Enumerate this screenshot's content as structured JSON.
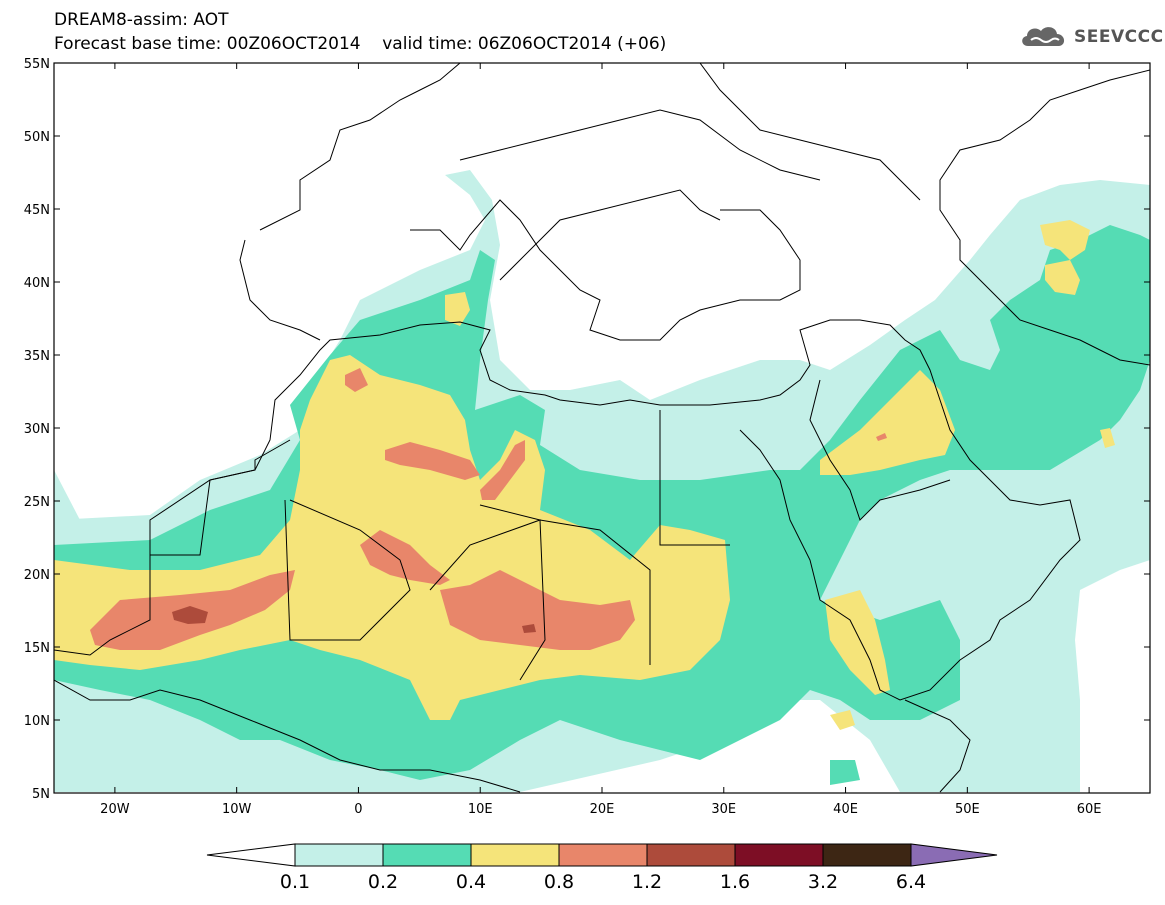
{
  "header": {
    "line1": "DREAM8-assim: AOT",
    "line2_base": "Forecast base time: 00Z06OCT2014",
    "line2_valid": "valid time: 06Z06OCT2014 (+06)"
  },
  "logo": {
    "text": "SEEVCCC",
    "icon": "cloud-icon"
  },
  "map": {
    "lon_range": [
      -25,
      65
    ],
    "lat_range": [
      5,
      55
    ],
    "lat_ticks": [
      {
        "value": 55,
        "label": "55N"
      },
      {
        "value": 50,
        "label": "50N"
      },
      {
        "value": 45,
        "label": "45N"
      },
      {
        "value": 40,
        "label": "40N"
      },
      {
        "value": 35,
        "label": "35N"
      },
      {
        "value": 30,
        "label": "30N"
      },
      {
        "value": 25,
        "label": "25N"
      },
      {
        "value": 20,
        "label": "20N"
      },
      {
        "value": 15,
        "label": "15N"
      },
      {
        "value": 10,
        "label": "10N"
      },
      {
        "value": 5,
        "label": "5N"
      }
    ],
    "lon_ticks": [
      {
        "value": -20,
        "label": "20W"
      },
      {
        "value": -10,
        "label": "10W"
      },
      {
        "value": 0,
        "label": "0"
      },
      {
        "value": 10,
        "label": "10E"
      },
      {
        "value": 20,
        "label": "20E"
      },
      {
        "value": 30,
        "label": "30E"
      },
      {
        "value": 40,
        "label": "40E"
      },
      {
        "value": 50,
        "label": "50E"
      },
      {
        "value": 60,
        "label": "60E"
      }
    ],
    "colors": {
      "l1": "#c4f0e8",
      "l2": "#55dcb4",
      "l3": "#f5e47a",
      "l4": "#e8866a",
      "l5": "#ad4b3b",
      "coast": "#000000"
    }
  },
  "colorbar": {
    "labels": [
      "0.1",
      "0.2",
      "0.4",
      "0.8",
      "1.2",
      "1.6",
      "3.2",
      "6.4"
    ],
    "colors": [
      "#ffffff",
      "#c4f0e8",
      "#55dcb4",
      "#f5e47a",
      "#e8866a",
      "#ad4b3b",
      "#7d0e25",
      "#3d2614",
      "#8a6cb4"
    ]
  }
}
